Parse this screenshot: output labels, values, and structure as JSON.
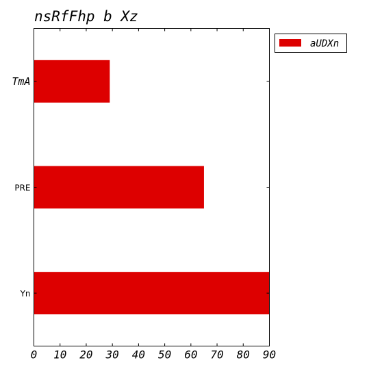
{
  "chart_data": {
    "type": "bar",
    "orientation": "horizontal",
    "title": "nsRfFhp b Xz",
    "xlabel": "",
    "ylabel": "",
    "categories": [
      "TmA",
      "PRE",
      "Yn"
    ],
    "category_label_style": [
      "italic-mono",
      "plain",
      "plain"
    ],
    "series": [
      {
        "name": "aUDXn",
        "color": "#dd0000",
        "values": [
          29,
          65,
          90
        ]
      }
    ],
    "xlim": [
      0,
      90
    ],
    "xticks": [
      0,
      10,
      20,
      30,
      40,
      50,
      60,
      70,
      80,
      90
    ],
    "grid": false,
    "legend_position": "outside-top-right"
  }
}
